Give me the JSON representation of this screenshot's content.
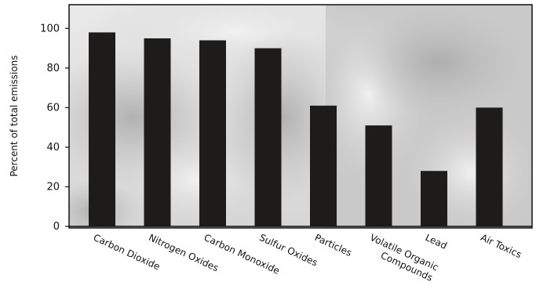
{
  "chart_data": {
    "type": "bar",
    "ylabel": "Percent of total emissions",
    "xlabel": "",
    "ylim": [
      0,
      112
    ],
    "yticks": [
      0,
      20,
      40,
      60,
      80,
      100
    ],
    "grid": false,
    "categories": [
      [
        "Carbon Dioxide"
      ],
      [
        "Nitrogen Oxides"
      ],
      [
        "Carbon Monoxide"
      ],
      [
        "Sulfur Oxides"
      ],
      [
        "Particles"
      ],
      [
        "Volatile Organic",
        "Compounds"
      ],
      [
        "Lead"
      ],
      [
        "Air Toxics"
      ]
    ],
    "values": [
      98,
      95,
      94,
      90,
      61,
      51,
      28,
      60
    ],
    "colors": {
      "bar": "#1e1b1b",
      "axis": "#111111",
      "background_smoke": "#bdbdbd"
    }
  }
}
